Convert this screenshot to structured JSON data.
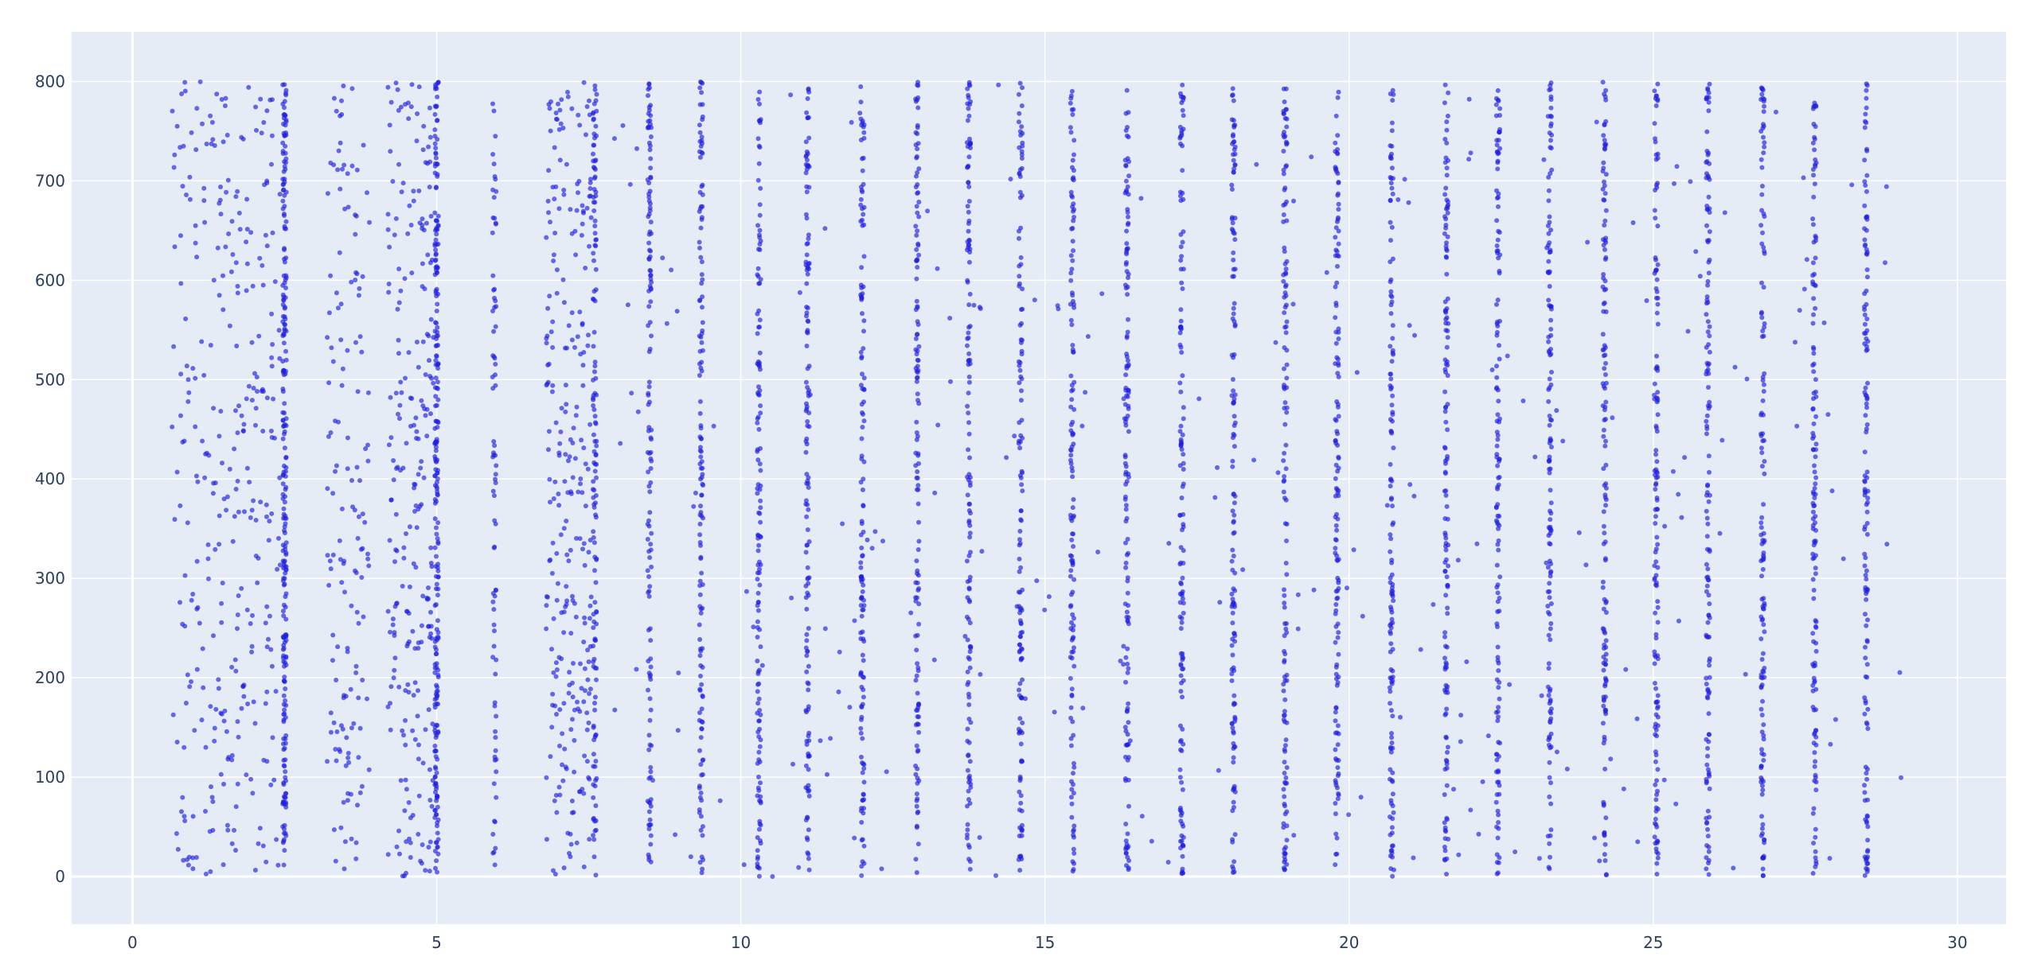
{
  "chart_data": {
    "type": "scatter",
    "title": "",
    "xlabel": "",
    "ylabel": "",
    "xlim": [
      -1,
      30.8
    ],
    "ylim": [
      -48,
      850
    ],
    "grid": true,
    "legend": "none",
    "x_ticks": [
      0,
      5,
      10,
      15,
      20,
      25,
      30
    ],
    "y_ticks": [
      0,
      100,
      200,
      300,
      400,
      500,
      600,
      700,
      800
    ],
    "x_tick_labels": [
      "0",
      "5",
      "10",
      "15",
      "20",
      "25",
      "30"
    ],
    "y_tick_labels": [
      "0",
      "100",
      "200",
      "300",
      "400",
      "500",
      "600",
      "700",
      "800"
    ],
    "colors": {
      "plot_background": "#e5ecf6",
      "gridline": "#ffffff",
      "marker": "#1f1fe0",
      "tick_text": "#2a3f5f"
    },
    "series": [
      {
        "marker_opacity": 0.65,
        "column_bands": [
          {
            "x": 2.5,
            "density": "very-dense"
          },
          {
            "x": 5.0,
            "density": "very-dense"
          },
          {
            "x": 5.95,
            "density": "medium"
          },
          {
            "x": 7.6,
            "density": "dense"
          },
          {
            "x": 8.5,
            "density": "dense"
          },
          {
            "x": 9.35,
            "density": "dense"
          },
          {
            "x": 10.3,
            "density": "dense"
          },
          {
            "x": 11.1,
            "density": "dense"
          },
          {
            "x": 12.0,
            "density": "dense"
          },
          {
            "x": 12.9,
            "density": "dense"
          },
          {
            "x": 13.75,
            "density": "dense"
          },
          {
            "x": 14.6,
            "density": "dense"
          },
          {
            "x": 15.45,
            "density": "dense"
          },
          {
            "x": 16.35,
            "density": "dense"
          },
          {
            "x": 17.25,
            "density": "dense"
          },
          {
            "x": 18.1,
            "density": "dense"
          },
          {
            "x": 18.95,
            "density": "dense"
          },
          {
            "x": 19.8,
            "density": "dense"
          },
          {
            "x": 20.7,
            "density": "dense"
          },
          {
            "x": 21.6,
            "density": "dense"
          },
          {
            "x": 22.45,
            "density": "dense"
          },
          {
            "x": 23.3,
            "density": "dense"
          },
          {
            "x": 24.2,
            "density": "dense"
          },
          {
            "x": 25.05,
            "density": "dense"
          },
          {
            "x": 25.9,
            "density": "dense"
          },
          {
            "x": 26.8,
            "density": "dense"
          },
          {
            "x": 27.65,
            "density": "dense"
          },
          {
            "x": 28.5,
            "density": "dense"
          }
        ],
        "scatter_regions": [
          {
            "x_range": [
              0.65,
              2.45
            ],
            "count": 320
          },
          {
            "x_range": [
              3.2,
              3.9
            ],
            "count": 150
          },
          {
            "x_range": [
              4.2,
              4.95
            ],
            "count": 230
          },
          {
            "x_range": [
              6.8,
              7.55
            ],
            "count": 260
          },
          {
            "x_range": [
              7.7,
              28.8
            ],
            "count": 230
          },
          {
            "x_range": [
              28.8,
              29.3
            ],
            "count": 5
          }
        ],
        "y_range": [
          0,
          800
        ]
      }
    ]
  }
}
